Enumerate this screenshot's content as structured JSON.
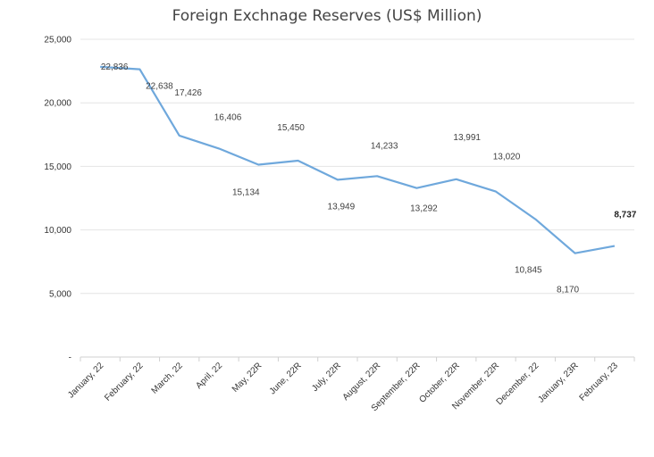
{
  "chart_data": {
    "type": "line",
    "title": "Foreign Exchnage Reserves (US$ Million)",
    "xlabel": "",
    "ylabel": "",
    "ylim": [
      0,
      25000
    ],
    "yticks": [
      0,
      5000,
      10000,
      15000,
      20000,
      25000
    ],
    "ytick_labels": [
      "-",
      "5,000",
      "10,000",
      "15,000",
      "20,000",
      "25,000"
    ],
    "grid": true,
    "legend": "none",
    "line_color": "#6fa8dc",
    "categories": [
      "January, 22",
      "February, 22",
      "March, 22",
      "April, 22",
      "May, 22R",
      "June, 22R",
      "July, 22R",
      "August, 22R",
      "September, 22R",
      "October, 22R",
      "November, 22R",
      "December, 22",
      "January, 23R",
      "February, 23"
    ],
    "values": [
      22836,
      22638,
      17426,
      16406,
      15134,
      15450,
      13949,
      14233,
      13292,
      13991,
      13020,
      10845,
      8170,
      8737
    ],
    "data_labels": [
      "22,836",
      "22,638",
      "17,426",
      "16,406",
      "15,134",
      "15,450",
      "13,949",
      "14,233",
      "13,292",
      "13,991",
      "13,020",
      "10,845",
      "8,170",
      "8,737"
    ]
  }
}
